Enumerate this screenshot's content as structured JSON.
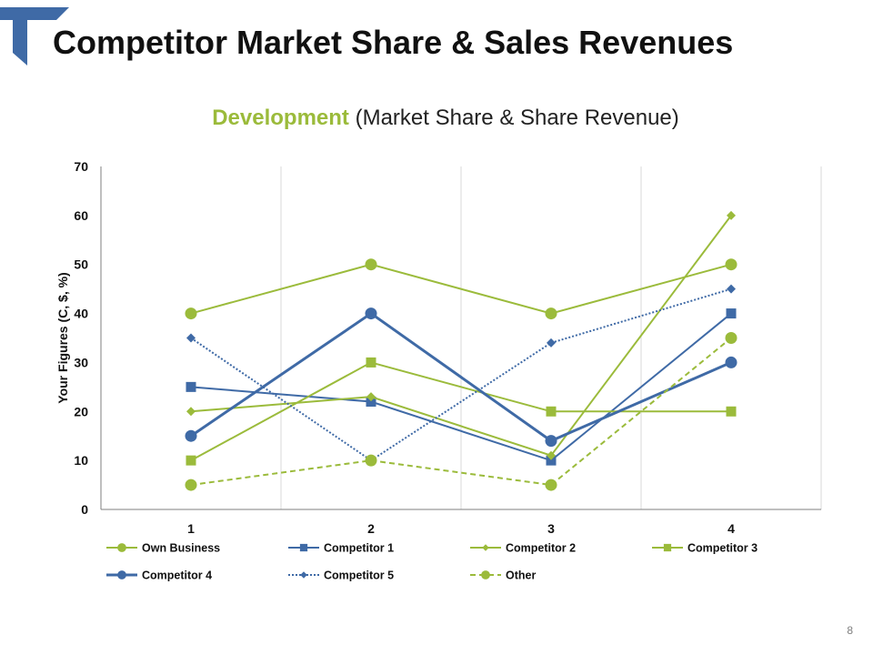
{
  "slide": {
    "title": "Competitor Market Share & Sales Revenues",
    "page_number": "8"
  },
  "colors": {
    "green": "#9bbb3b",
    "blue": "#3f6aa6",
    "grid": "#d9d9d9",
    "axis": "#7f7f7f",
    "text": "#111111"
  },
  "chart_data": {
    "type": "line",
    "title_emphasis": "Development",
    "title_rest": "(Market Share & Share Revenue)",
    "xlabel": "",
    "ylabel": "Your Figures (C, $, %)",
    "categories": [
      "1",
      "2",
      "3",
      "4"
    ],
    "ylim": [
      0,
      70
    ],
    "yticks": [
      0,
      10,
      20,
      30,
      40,
      50,
      60,
      70
    ],
    "grid": "vertical",
    "legend_position": "bottom",
    "series": [
      {
        "name": "Own Business",
        "values": [
          40,
          50,
          40,
          50
        ],
        "color": "#9bbb3b",
        "marker": "circle",
        "dash": "solid",
        "weight": "normal"
      },
      {
        "name": "Competitor 1",
        "values": [
          25,
          22,
          10,
          40
        ],
        "color": "#3f6aa6",
        "marker": "square",
        "dash": "solid",
        "weight": "normal"
      },
      {
        "name": "Competitor 2",
        "values": [
          20,
          23,
          11,
          60
        ],
        "color": "#9bbb3b",
        "marker": "diamond",
        "dash": "solid",
        "weight": "normal"
      },
      {
        "name": "Competitor 3",
        "values": [
          10,
          30,
          20,
          20
        ],
        "color": "#9bbb3b",
        "marker": "square",
        "dash": "solid",
        "weight": "normal"
      },
      {
        "name": "Competitor 4",
        "values": [
          15,
          40,
          14,
          30
        ],
        "color": "#3f6aa6",
        "marker": "circle",
        "dash": "solid",
        "weight": "bold"
      },
      {
        "name": "Competitor 5",
        "values": [
          35,
          10,
          34,
          45
        ],
        "color": "#3f6aa6",
        "marker": "diamond",
        "dash": "dotted",
        "weight": "normal"
      },
      {
        "name": "Other",
        "values": [
          5,
          10,
          5,
          35
        ],
        "color": "#9bbb3b",
        "marker": "circle",
        "dash": "dashed",
        "weight": "normal"
      }
    ]
  }
}
